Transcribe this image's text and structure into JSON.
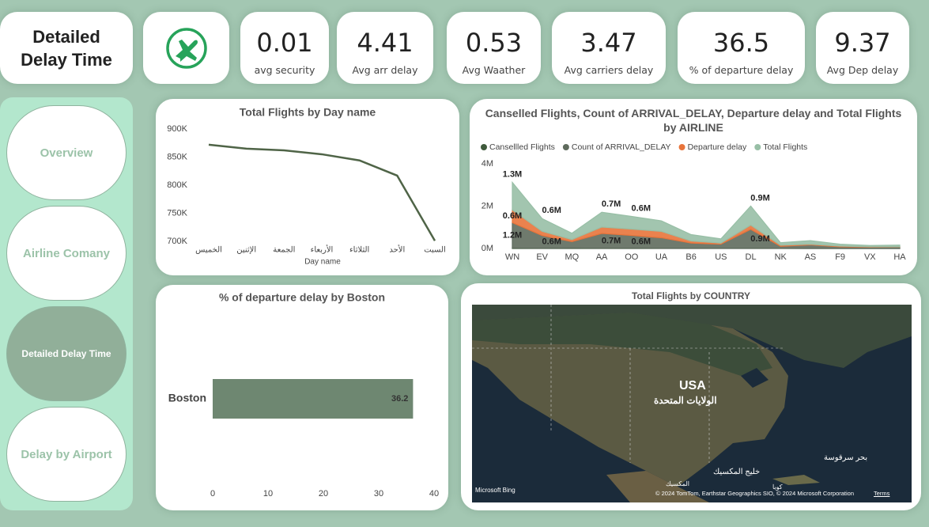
{
  "header": {
    "title": "Detailed Delay Time"
  },
  "kpis": [
    {
      "value": 0.01,
      "label": "avg security"
    },
    {
      "value": 4.41,
      "label": "Avg arr delay"
    },
    {
      "value": 0.53,
      "label": "Avg Waather"
    },
    {
      "value": 3.47,
      "label": "Avg carriers delay"
    },
    {
      "value": 36.5,
      "label": "% of departure delay"
    },
    {
      "value": 9.37,
      "label": "Avg Dep delay"
    }
  ],
  "nav": {
    "items": [
      "Overview",
      "Airline Comany",
      "Detailed Delay Time",
      "Delay by Airport"
    ],
    "active": 2
  },
  "chart_data": [
    {
      "type": "line",
      "title": "Total Flights by Day name",
      "x_label": "Day name",
      "categories": [
        "الخميس",
        "الإثنين",
        "الجمعة",
        "الأربعاء",
        "الثلاثاء",
        "الأحد",
        "السبت"
      ],
      "values": [
        872000,
        865000,
        862000,
        855000,
        844000,
        817000,
        701000
      ],
      "color": "#4f6447",
      "ylim": [
        700000,
        900000
      ],
      "yticks": [
        {
          "value": 700000,
          "label": "700K"
        },
        {
          "value": 750000,
          "label": "750K"
        },
        {
          "value": 800000,
          "label": "800K"
        },
        {
          "value": 850000,
          "label": "850K"
        },
        {
          "value": 900000,
          "label": "900K"
        }
      ]
    },
    {
      "type": "stacked_area",
      "title": "Canselled Flights, Count of ARRIVAL_DELAY, Departure delay and Total Flights by AIRLINE",
      "categories": [
        "WN",
        "EV",
        "MQ",
        "AA",
        "OO",
        "UA",
        "B6",
        "US",
        "DL",
        "NK",
        "AS",
        "F9",
        "VX",
        "HA"
      ],
      "ylim": [
        0,
        4000000
      ],
      "yticks": [
        {
          "value": 0,
          "label": "0M"
        },
        {
          "value": 2000000,
          "label": "2M"
        },
        {
          "value": 4000000,
          "label": "4M"
        }
      ],
      "series": [
        {
          "name": "Cansellled Flights",
          "color": "#3f5a3c",
          "values": [
            20000,
            10000,
            20000,
            10000,
            15000,
            6000,
            4000,
            4000,
            4000,
            2000,
            1000,
            500,
            500,
            200
          ],
          "value_labels": [
            null,
            null,
            null,
            null,
            null,
            null,
            null,
            null,
            null,
            null,
            null,
            null,
            null,
            null
          ]
        },
        {
          "name": "Count of ARRIVAL_DELAY",
          "color": "#5f6b5d",
          "values": [
            1200000,
            600000,
            300000,
            700000,
            600000,
            500000,
            250000,
            200000,
            900000,
            100000,
            170000,
            80000,
            60000,
            70000
          ],
          "value_labels": [
            "1.2M",
            "0.6M",
            null,
            "0.7M",
            "0.6M",
            null,
            null,
            null,
            "0.9M",
            null,
            null,
            null,
            null,
            null
          ]
        },
        {
          "name": "Departure delay",
          "color": "#e8743b",
          "values": [
            600000,
            200000,
            100000,
            300000,
            300000,
            300000,
            100000,
            50000,
            200000,
            50000,
            30000,
            30000,
            20000,
            10000
          ],
          "value_labels": [
            "0.6M",
            null,
            null,
            null,
            null,
            null,
            null,
            null,
            null,
            null,
            null,
            null,
            null,
            null
          ]
        },
        {
          "name": "Total Flights",
          "color": "#98bfa6",
          "values": [
            1300000,
            600000,
            300000,
            700000,
            600000,
            500000,
            300000,
            200000,
            900000,
            120000,
            170000,
            90000,
            60000,
            80000
          ],
          "value_labels": [
            "1.3M",
            "0.6M",
            null,
            "0.7M",
            "0.6M",
            null,
            null,
            null,
            "0.9M",
            null,
            null,
            null,
            null,
            null
          ]
        }
      ]
    },
    {
      "type": "hbar",
      "title": "% of departure delay by Boston",
      "categories": [
        "Boston"
      ],
      "values": [
        36.2
      ],
      "color": "#6e8771",
      "xlim": [
        0,
        40
      ],
      "xticks": [
        0,
        10,
        20,
        30,
        40
      ]
    }
  ],
  "map": {
    "title": "Total Flights by COUNTRY",
    "country": "USA",
    "country_local": "الولايات المتحدة",
    "places": [
      "خليج المكسيك",
      "بحر سرقوسة",
      "المكسيك",
      "كوبا"
    ],
    "provider": "Microsoft Bing",
    "copyright": "© 2024 TomTom, Earthstar Geographics SIO, © 2024 Microsoft Corporation",
    "terms": "Terms"
  }
}
